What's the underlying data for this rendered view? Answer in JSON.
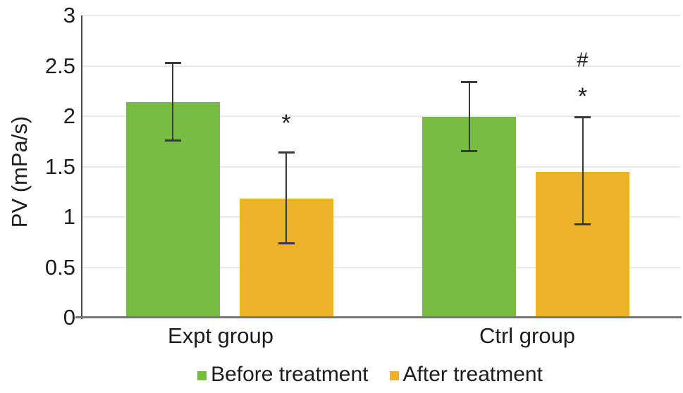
{
  "chart_data": {
    "type": "bar",
    "title": "",
    "ylabel": "PV (mPa/s)",
    "xlabel": "",
    "ylim": [
      0,
      3
    ],
    "yticks": [
      0,
      0.5,
      1,
      1.5,
      2,
      2.5,
      3
    ],
    "ytick_labels": [
      "0",
      "0.5",
      "1",
      "1.5",
      "2",
      "2.5",
      "3"
    ],
    "grid": true,
    "legend_position": "bottom",
    "categories": [
      "Expt group",
      "Ctrl group"
    ],
    "series": [
      {
        "name": "Before treatment",
        "color": "#76bc43",
        "values": [
          2.14,
          1.99
        ],
        "error_low": [
          1.76,
          1.66
        ],
        "error_high": [
          2.53,
          2.34
        ]
      },
      {
        "name": "After treatment",
        "color": "#ecb22a",
        "values": [
          1.18,
          1.45
        ],
        "error_low": [
          0.74,
          0.93
        ],
        "error_high": [
          1.64,
          1.99
        ]
      }
    ],
    "annotations": [
      {
        "text": "*",
        "category_index": 0,
        "series_index": 1,
        "value": 1.97
      },
      {
        "text": "#",
        "category_index": 1,
        "series_index": 1,
        "value": 2.56
      },
      {
        "text": "*",
        "category_index": 1,
        "series_index": 1,
        "value": 2.24
      }
    ]
  },
  "colors": {
    "background": "#ffffff",
    "before_bar": "#76bc43",
    "after_bar": "#ecb22a",
    "x_axis_line": "#76777a",
    "y_axis_line": "#4a4a4c",
    "gridline": "#e9e9e9",
    "error_bar": "#39393b",
    "text": "#1c1c1c"
  }
}
